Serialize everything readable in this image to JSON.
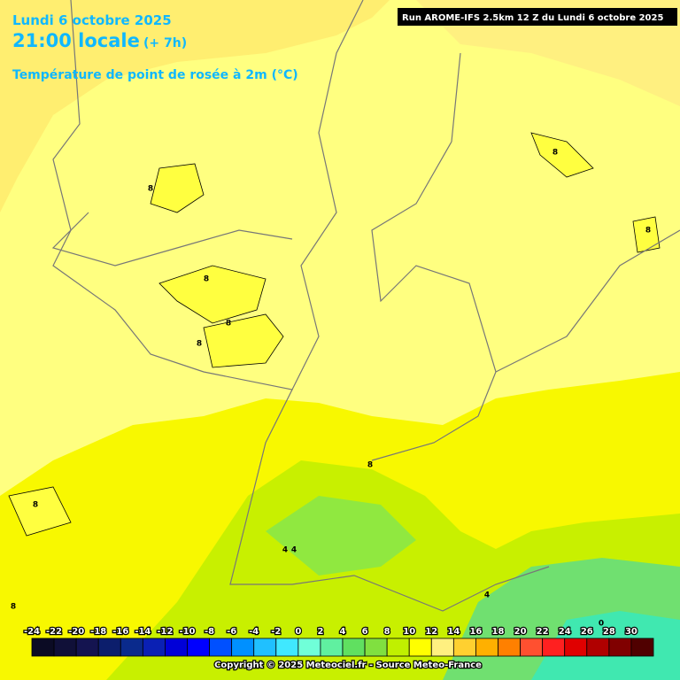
{
  "header": {
    "date": "Lundi 6 octobre 2025",
    "time": "21:00 locale",
    "offset": "(+ 7h)",
    "parameter": "Température de point de rosée à 2m (°C)",
    "run": "Run AROME-IFS 2.5km 12 Z du Lundi 6 octobre 2025"
  },
  "legend": {
    "labels": [
      -24,
      -22,
      -20,
      -18,
      -16,
      -14,
      -12,
      -10,
      -8,
      -6,
      -4,
      -2,
      0,
      2,
      4,
      6,
      8,
      10,
      12,
      14,
      16,
      18,
      20,
      22,
      24,
      26,
      28,
      30
    ],
    "colors": [
      "#0b0b24",
      "#101038",
      "#141450",
      "#0c1e6c",
      "#0a2a8c",
      "#0a20b4",
      "#0000d8",
      "#0000ff",
      "#0050ff",
      "#0090ff",
      "#20c0ff",
      "#40e8ff",
      "#70ffd8",
      "#60f0a0",
      "#60e060",
      "#80e040",
      "#c0f000",
      "#ffff00",
      "#fff080",
      "#ffd030",
      "#ffb000",
      "#ff8000",
      "#ff5030",
      "#ff2020",
      "#e00000",
      "#b00000",
      "#800000",
      "#500000"
    ]
  },
  "contour_labels": [
    "8",
    "8",
    "8",
    "8",
    "8",
    "8",
    "8",
    "8",
    "8",
    "4",
    "4",
    "4",
    "0"
  ],
  "copyright": "Copyright © 2025 Meteociel.fr - Source Meteo-France"
}
